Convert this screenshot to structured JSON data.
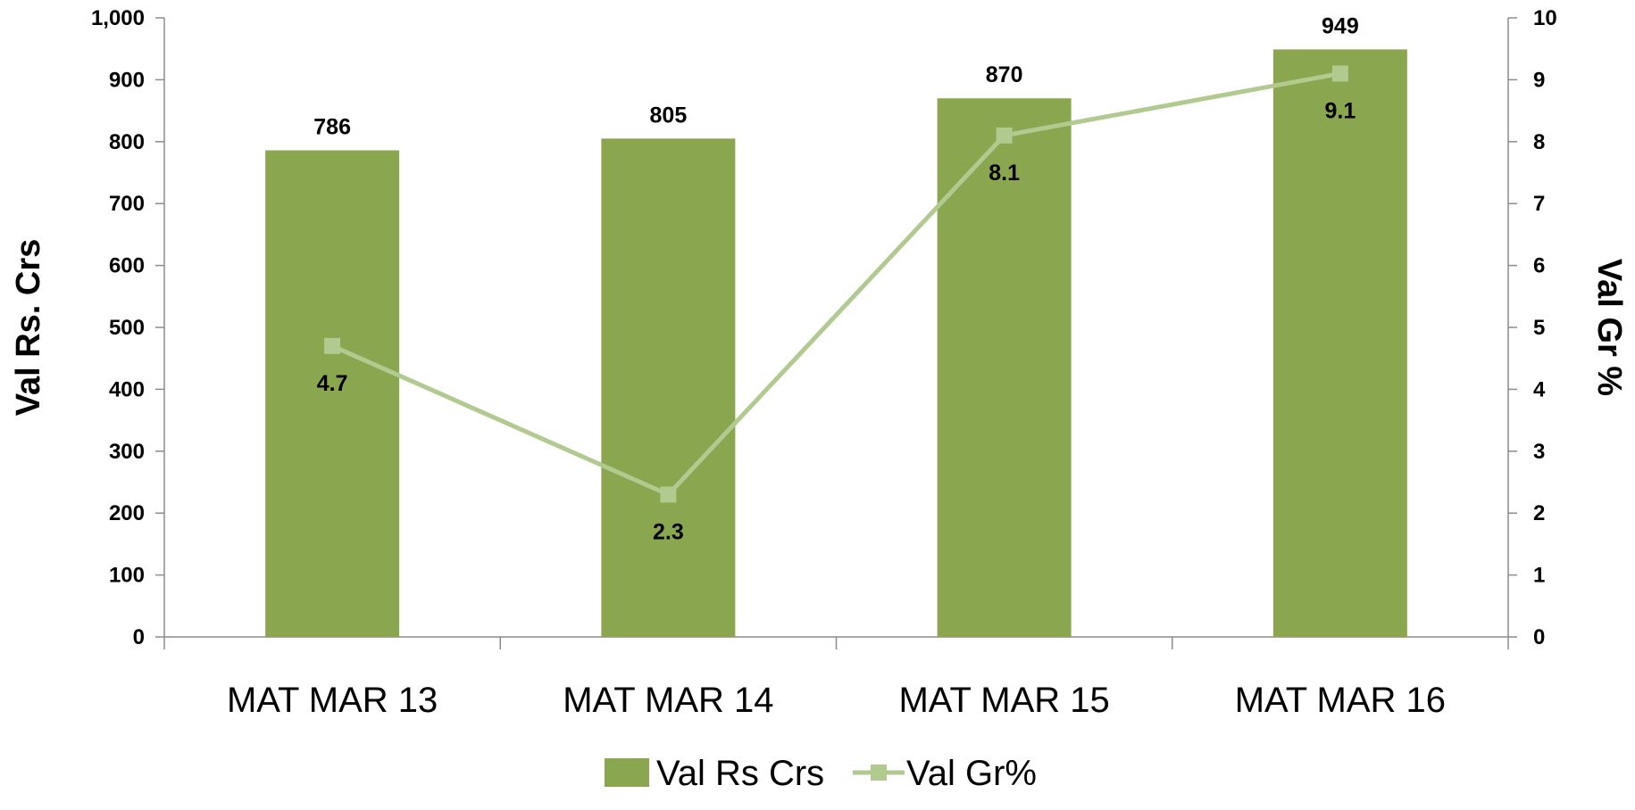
{
  "chart_data": {
    "type": "bar",
    "categories": [
      "MAT MAR 13",
      "MAT MAR 14",
      "MAT MAR 15",
      "MAT MAR 16"
    ],
    "series": [
      {
        "name": "Val Rs Crs",
        "type": "bar",
        "axis": "left",
        "values": [
          786,
          805,
          870,
          949
        ],
        "labels": [
          "786",
          "805",
          "870",
          "949"
        ],
        "color": "#8aa64f"
      },
      {
        "name": "Val Gr%",
        "type": "line",
        "axis": "right",
        "values": [
          4.7,
          2.3,
          8.1,
          9.1
        ],
        "labels": [
          "4.7",
          "2.3",
          "8.1",
          "9.1"
        ],
        "color": "#b1ca8f"
      }
    ],
    "ylabel": "Val Rs. Crs",
    "y2label": "Val  Gr %",
    "ylim": [
      0,
      1000
    ],
    "y2lim": [
      0,
      10
    ],
    "yticks": [
      "0",
      "100",
      "200",
      "300",
      "400",
      "500",
      "600",
      "700",
      "800",
      "900",
      "1,000"
    ],
    "y2ticks": [
      "0",
      "1",
      "2",
      "3",
      "4",
      "5",
      "6",
      "7",
      "8",
      "9",
      "10"
    ],
    "grid": false,
    "legend": "bottom-center"
  }
}
